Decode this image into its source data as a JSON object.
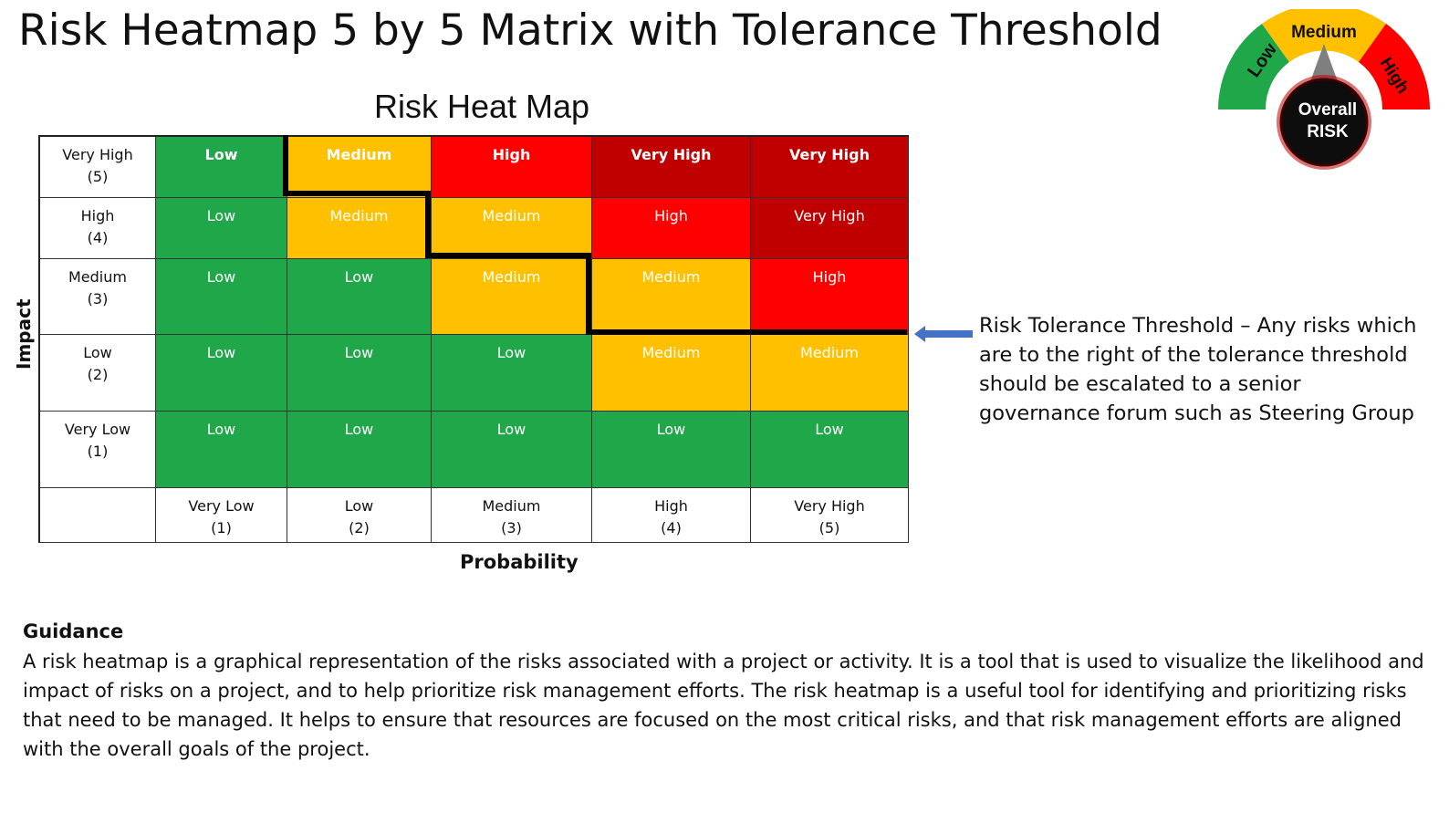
{
  "title": "Risk Heatmap 5 by 5 Matrix with Tolerance Threshold",
  "heatmap_title": "Risk Heat Map",
  "axes": {
    "impact_label": "Impact",
    "probability_label": "Probability",
    "impact_rows": [
      {
        "name": "Very High",
        "value": "(5)"
      },
      {
        "name": "High",
        "value": "(4)"
      },
      {
        "name": "Medium",
        "value": "(3)"
      },
      {
        "name": "Low",
        "value": "(2)"
      },
      {
        "name": "Very Low",
        "value": "(1)"
      }
    ],
    "probability_cols": [
      {
        "name": "Very Low",
        "value": "(1)"
      },
      {
        "name": "Low",
        "value": "(2)"
      },
      {
        "name": "Medium",
        "value": "(3)"
      },
      {
        "name": "High",
        "value": "(4)"
      },
      {
        "name": "Very High",
        "value": "(5)"
      }
    ]
  },
  "matrix": [
    [
      "Low",
      "Medium",
      "High",
      "Very High",
      "Very High"
    ],
    [
      "Low",
      "Medium",
      "Medium",
      "High",
      "Very High"
    ],
    [
      "Low",
      "Low",
      "Medium",
      "Medium",
      "High"
    ],
    [
      "Low",
      "Low",
      "Low",
      "Medium",
      "Medium"
    ],
    [
      "Low",
      "Low",
      "Low",
      "Low",
      "Low"
    ]
  ],
  "level_colors": {
    "Low": "#1fa74a",
    "Medium": "#ffc000",
    "High": "#ff0000",
    "Very High": "#c00000"
  },
  "tolerance_threshold_text": "Risk Tolerance Threshold – Any risks which are to the right of the tolerance threshold should be escalated to a senior governance forum such as Steering Group",
  "arrow_icon": "left-arrow-icon",
  "arrow_color": "#4472c4",
  "gauge": {
    "low": "Low",
    "medium": "Medium",
    "high": "High",
    "center_line1": "Overall",
    "center_line2": "RISK",
    "colors": {
      "low": "#1fa74a",
      "medium": "#ffc000",
      "high": "#ff0000",
      "center": "#0d0d0d",
      "ring": "#c00000"
    }
  },
  "guidance": {
    "heading": "Guidance",
    "text": "A risk heatmap is a graphical representation of the risks associated with a project or activity. It is a tool that is used to visualize the likelihood and impact of risks on a project, and to help prioritize risk management efforts.  The risk heatmap is a useful tool for identifying and prioritizing risks that need to be managed. It helps to ensure that resources are focused on the most critical risks, and that risk management efforts are aligned with the overall goals of the project."
  }
}
